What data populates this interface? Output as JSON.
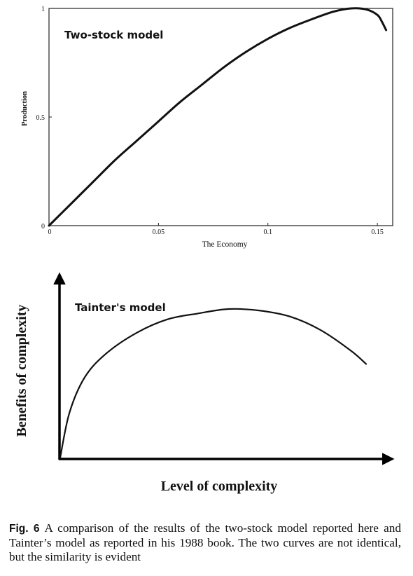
{
  "chart_data": [
    {
      "type": "line",
      "title": "Two-stock model",
      "xlabel": "The Economy",
      "ylabel": "Production",
      "xlim": [
        0,
        0.157
      ],
      "ylim": [
        0,
        1
      ],
      "x_ticks": [
        "0",
        "0.05",
        "0.1",
        "0.15"
      ],
      "y_ticks": [
        "0",
        "0.5",
        "1"
      ],
      "grid": false,
      "series": [
        {
          "x": [
            0,
            0.01,
            0.02,
            0.03,
            0.04,
            0.05,
            0.06,
            0.07,
            0.08,
            0.09,
            0.1,
            0.11,
            0.12,
            0.13,
            0.138,
            0.145,
            0.15,
            0.152,
            0.154
          ],
          "values": [
            0,
            0.1,
            0.2,
            0.3,
            0.39,
            0.48,
            0.57,
            0.65,
            0.73,
            0.8,
            0.86,
            0.91,
            0.95,
            0.985,
            1.0,
            0.995,
            0.97,
            0.94,
            0.9
          ]
        }
      ]
    },
    {
      "type": "line",
      "title": "Tainter's model",
      "xlabel": "Level of complexity",
      "ylabel": "Benefits of complexity",
      "axis_ticks": false,
      "grid": false,
      "series": [
        {
          "x": [
            0,
            0.03,
            0.08,
            0.15,
            0.25,
            0.35,
            0.45,
            0.55,
            0.65,
            0.75,
            0.85,
            0.95,
            1.0
          ],
          "values": [
            0,
            0.3,
            0.54,
            0.7,
            0.84,
            0.93,
            0.97,
            1.0,
            0.99,
            0.95,
            0.86,
            0.72,
            0.63
          ]
        }
      ]
    }
  ],
  "caption": {
    "label": "Fig. 6",
    "text": "A comparison of the results of the two-stock model reported here and Tainter’s model as reported in his 1988 book. The two curves are not identical, but the similarity is evident"
  }
}
